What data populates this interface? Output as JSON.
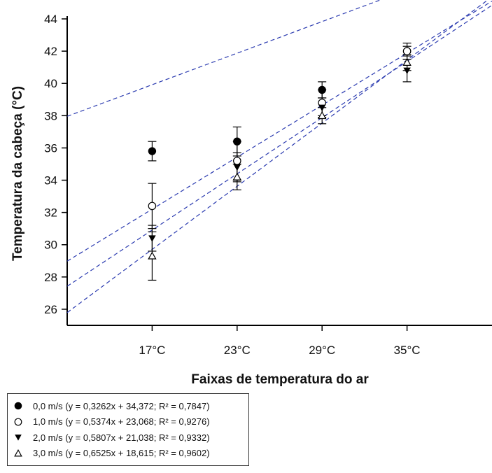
{
  "chart_data": {
    "type": "scatter",
    "xlabel": "Faixas de temperatura do ar",
    "ylabel": "Temperatura da cabeça (°C)",
    "categories": [
      "17°C",
      "23°C",
      "29°C",
      "35°C"
    ],
    "x_positions": [
      1,
      2,
      3,
      4
    ],
    "xlim": [
      0,
      5
    ],
    "ylim": [
      25,
      44
    ],
    "yticks": [
      26,
      28,
      30,
      32,
      34,
      36,
      38,
      40,
      42,
      44
    ],
    "grid": false,
    "legend_position": "bottom-left, below plot",
    "trendline_color": "#2b3bb0",
    "series": [
      {
        "label": "0,0 m/s (y = 0,3262x + 34,372; R² = 0,7847)",
        "marker": "filled-circle",
        "values": [
          35.8,
          36.4,
          39.6,
          42.0
        ],
        "error": [
          0.6,
          0.9,
          0.5,
          0.3
        ],
        "fit": {
          "slope": 0.3262,
          "intercept": 34.372
        }
      },
      {
        "label": "1,0 m/s (y = 0,5374x + 23,068; R² = 0,9276)",
        "marker": "open-circle",
        "values": [
          32.4,
          35.2,
          38.8,
          42.0
        ],
        "error": [
          1.4,
          1.2,
          0.8,
          0.5
        ],
        "fit": {
          "slope": 0.5374,
          "intercept": 23.068
        }
      },
      {
        "label": "2,0 m/s (y = 0,5807x + 21,038; R² = 0,9332)",
        "marker": "filled-triangle-down",
        "values": [
          30.4,
          34.8,
          38.5,
          40.8
        ],
        "error": [
          0.8,
          0.9,
          0.6,
          0.7
        ],
        "fit": {
          "slope": 0.5807,
          "intercept": 21.038
        }
      },
      {
        "label": "3,0 m/s (y = 0,6525x + 18,615; R² = 0,9602)",
        "marker": "open-triangle-up",
        "values": [
          29.3,
          34.2,
          38.0,
          41.3
        ],
        "error": [
          1.5,
          0.8,
          0.5,
          0.5
        ],
        "fit": {
          "slope": 0.6525,
          "intercept": 18.615
        }
      }
    ]
  }
}
